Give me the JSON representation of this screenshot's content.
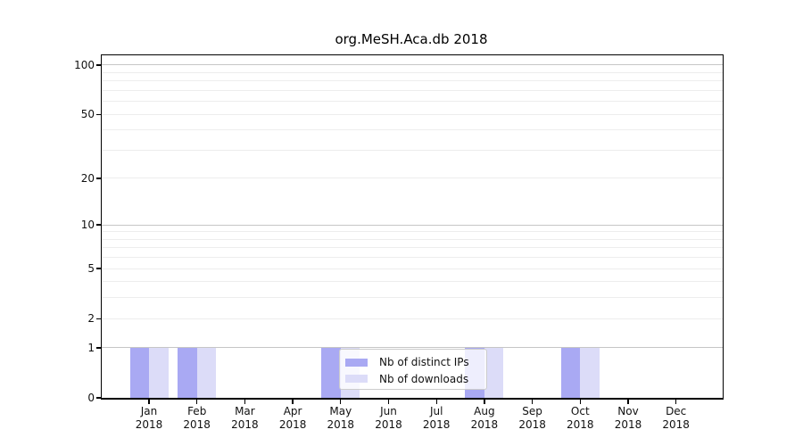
{
  "chart_data": {
    "type": "bar",
    "title": "org.MeSH.Aca.db 2018",
    "categories": [
      "Jan",
      "Feb",
      "Mar",
      "Apr",
      "May",
      "Jun",
      "Jul",
      "Aug",
      "Sep",
      "Oct",
      "Nov",
      "Dec"
    ],
    "x_year_label": "2018",
    "series": [
      {
        "name": "Nb of distinct IPs",
        "color": "#a9a9f3",
        "values": [
          1,
          1,
          0,
          0,
          1,
          0,
          0,
          1,
          0,
          1,
          0,
          0
        ]
      },
      {
        "name": "Nb of downloads",
        "color": "#dcdcf8",
        "values": [
          1,
          1,
          0,
          0,
          1,
          0,
          0,
          1,
          0,
          1,
          0,
          0
        ]
      }
    ],
    "y_axis": {
      "scale": "log1p",
      "min": 0,
      "max": 100,
      "tick_values": [
        0,
        1,
        2,
        5,
        10,
        20,
        50,
        100
      ],
      "major_gridlines": [
        1,
        10,
        100
      ],
      "minor_gridlines": [
        2,
        3,
        4,
        5,
        6,
        7,
        8,
        9,
        20,
        30,
        40,
        50,
        60,
        70,
        80,
        90
      ]
    },
    "grid": true,
    "legend_position": "lower center-right, inside plot"
  },
  "colors": {
    "axis": "#000000",
    "major_gridline": "#c6c6c6",
    "minor_gridline": "#ededed",
    "text": "#111111"
  }
}
